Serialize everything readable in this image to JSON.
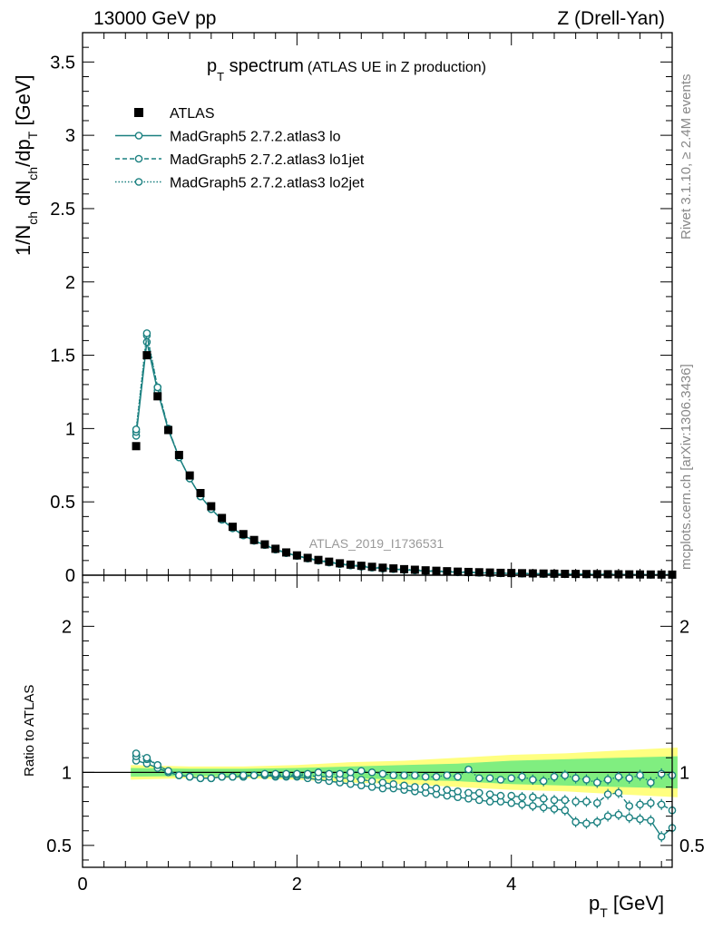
{
  "header": {
    "left": "13000 GeV pp",
    "right": "Z (Drell-Yan)"
  },
  "plot_title": {
    "main": "p",
    "main_sub": "T",
    "main_rest": " spectrum",
    "aux": "(ATLAS UE in Z production)"
  },
  "side_labels": {
    "rivet": "Rivet 3.1.10, ≥ 2.4M events",
    "mcplots": "mcplots.cern.ch [arXiv:1306.3436]"
  },
  "watermark": "ATLAS_2019_I1736531",
  "axes": {
    "ylabel_main": {
      "p1": "1/N",
      "s1": "ch",
      "p2": " dN",
      "s2": "ch",
      "p3": "/dp",
      "s3": "T",
      "p4": " [GeV]"
    },
    "ylabel_ratio": "Ratio to ATLAS",
    "xlabel": {
      "p1": "p",
      "s1": "T",
      "p2": " [GeV]"
    }
  },
  "legend": [
    {
      "label": "ATLAS",
      "style": "data"
    },
    {
      "label": "MadGraph5 2.7.2.atlas3 lo",
      "style": "solid"
    },
    {
      "label": "MadGraph5 2.7.2.atlas3 lo1jet",
      "style": "dashed"
    },
    {
      "label": "MadGraph5 2.7.2.atlas3 lo2jet",
      "style": "dotted"
    }
  ],
  "colors": {
    "data": "#000000",
    "mc": "#1a8080",
    "band_outer": "#ffff80",
    "band_inner": "#80ee80"
  },
  "chart_data": {
    "type": "scatter",
    "title": "pT spectrum (ATLAS UE in Z production)",
    "xlabel": "pT [GeV]",
    "ylabel": "1/Nch dNch/dpT [GeV]",
    "xlim": [
      0,
      5.5
    ],
    "ylim": [
      0,
      3.7
    ],
    "ratio_ylim": [
      0.35,
      2.35
    ],
    "ratio_ylabel": "Ratio to ATLAS",
    "x_ticks": [
      0,
      2,
      4
    ],
    "y_ticks": [
      0,
      0.5,
      1,
      1.5,
      2,
      2.5,
      3,
      3.5
    ],
    "ratio_ticks": [
      0.5,
      1,
      2
    ],
    "x": [
      0.5,
      0.6,
      0.7,
      0.8,
      0.9,
      1.0,
      1.1,
      1.2,
      1.3,
      1.4,
      1.5,
      1.6,
      1.7,
      1.8,
      1.9,
      2.0,
      2.1,
      2.2,
      2.3,
      2.4,
      2.5,
      2.6,
      2.7,
      2.8,
      2.9,
      3.0,
      3.1,
      3.2,
      3.3,
      3.4,
      3.5,
      3.6,
      3.7,
      3.8,
      3.9,
      4.0,
      4.1,
      4.2,
      4.3,
      4.4,
      4.5,
      4.6,
      4.7,
      4.8,
      4.9,
      5.0,
      5.1,
      5.2,
      5.3,
      5.4,
      5.5
    ],
    "data": [
      0.88,
      1.5,
      1.22,
      0.99,
      0.82,
      0.68,
      0.56,
      0.47,
      0.39,
      0.33,
      0.28,
      0.24,
      0.21,
      0.18,
      0.155,
      0.135,
      0.118,
      0.104,
      0.092,
      0.081,
      0.072,
      0.064,
      0.057,
      0.051,
      0.046,
      0.041,
      0.037,
      0.033,
      0.03,
      0.027,
      0.024,
      0.022,
      0.02,
      0.018,
      0.016,
      0.0148,
      0.0135,
      0.0123,
      0.0112,
      0.0102,
      0.0093,
      0.0085,
      0.0078,
      0.0071,
      0.0065,
      0.006,
      0.0055,
      0.005,
      0.0046,
      0.0042,
      0.0039
    ],
    "data_rel_err": [
      0.03,
      0.03,
      0.03,
      0.03,
      0.03,
      0.03,
      0.03,
      0.03,
      0.03,
      0.03,
      0.035,
      0.035,
      0.035,
      0.04,
      0.04,
      0.04,
      0.045,
      0.045,
      0.05,
      0.05,
      0.055,
      0.06,
      0.06,
      0.065,
      0.07,
      0.07,
      0.075,
      0.08,
      0.08,
      0.085,
      0.09,
      0.09,
      0.095,
      0.1,
      0.1,
      0.105,
      0.11,
      0.11,
      0.115,
      0.12,
      0.12,
      0.125,
      0.13,
      0.13,
      0.135,
      0.14,
      0.14,
      0.145,
      0.15,
      0.15,
      0.155
    ],
    "series": [
      {
        "name": "MadGraph5 2.7.2.atlas3 lo",
        "style": "solid",
        "ratio": [
          1.08,
          1.06,
          1.03,
          1.0,
          0.98,
          0.97,
          0.96,
          0.96,
          0.97,
          0.97,
          0.97,
          0.98,
          0.98,
          0.97,
          0.97,
          0.97,
          0.96,
          0.95,
          0.94,
          0.93,
          0.92,
          0.91,
          0.9,
          0.89,
          0.89,
          0.88,
          0.87,
          0.86,
          0.85,
          0.84,
          0.83,
          0.82,
          0.81,
          0.8,
          0.8,
          0.79,
          0.78,
          0.77,
          0.76,
          0.75,
          0.74,
          0.66,
          0.65,
          0.66,
          0.7,
          0.71,
          0.69,
          0.68,
          0.67,
          0.56,
          0.62
        ]
      },
      {
        "name": "MadGraph5 2.7.2.atlas3 lo1jet",
        "style": "dashed",
        "ratio": [
          1.11,
          1.09,
          1.05,
          1.01,
          0.98,
          0.97,
          0.96,
          0.96,
          0.97,
          0.97,
          0.97,
          0.98,
          0.98,
          0.98,
          0.98,
          0.98,
          0.98,
          0.97,
          0.97,
          0.96,
          0.96,
          0.95,
          0.94,
          0.93,
          0.92,
          0.91,
          0.9,
          0.9,
          0.89,
          0.88,
          0.87,
          0.86,
          0.86,
          0.85,
          0.84,
          0.84,
          0.83,
          0.83,
          0.82,
          0.81,
          0.81,
          0.8,
          0.8,
          0.79,
          0.85,
          0.86,
          0.77,
          0.78,
          0.79,
          0.78,
          0.74
        ]
      },
      {
        "name": "MadGraph5 2.7.2.atlas3 lo2jet",
        "style": "dotted",
        "ratio": [
          1.13,
          1.1,
          1.05,
          1.01,
          0.98,
          0.97,
          0.96,
          0.96,
          0.97,
          0.97,
          0.98,
          0.98,
          0.99,
          0.99,
          0.99,
          0.99,
          0.99,
          1.0,
          0.99,
          0.99,
          1.0,
          1.01,
          1.0,
          0.99,
          0.98,
          0.98,
          0.98,
          0.97,
          0.97,
          0.98,
          0.97,
          1.02,
          0.96,
          0.96,
          0.95,
          0.96,
          0.97,
          0.95,
          0.94,
          0.97,
          0.98,
          0.96,
          0.95,
          0.93,
          0.95,
          0.97,
          0.96,
          0.98,
          0.93,
          0.99,
          0.98
        ]
      }
    ],
    "band_outer": [
      [
        0.5,
        0.05
      ],
      [
        1.0,
        0.04
      ],
      [
        1.5,
        0.04
      ],
      [
        2.0,
        0.05
      ],
      [
        2.5,
        0.07
      ],
      [
        3.0,
        0.08
      ],
      [
        3.5,
        0.1
      ],
      [
        4.0,
        0.12
      ],
      [
        4.5,
        0.13
      ],
      [
        5.0,
        0.15
      ],
      [
        5.5,
        0.17
      ]
    ],
    "band_inner": [
      [
        0.5,
        0.03
      ],
      [
        1.0,
        0.025
      ],
      [
        1.5,
        0.025
      ],
      [
        2.0,
        0.03
      ],
      [
        2.5,
        0.04
      ],
      [
        3.0,
        0.05
      ],
      [
        3.5,
        0.06
      ],
      [
        4.0,
        0.08
      ],
      [
        4.5,
        0.09
      ],
      [
        5.0,
        0.1
      ],
      [
        5.5,
        0.11
      ]
    ]
  }
}
